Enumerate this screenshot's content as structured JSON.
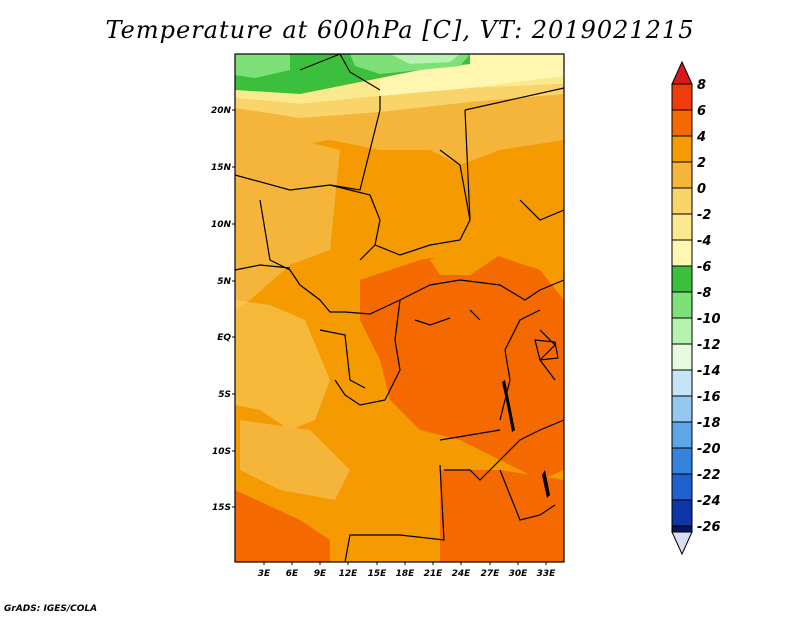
{
  "title": "Temperature at 600hPa [C], VT: 2019021215",
  "footer": "GrADS: IGES/COLA",
  "map": {
    "lat_labels": [
      "20N",
      "15N",
      "10N",
      "5N",
      "EQ",
      "5S",
      "10S",
      "15S"
    ],
    "lon_labels": [
      "3E",
      "6E",
      "9E",
      "12E",
      "15E",
      "18E",
      "21E",
      "24E",
      "27E",
      "30E",
      "33E"
    ]
  },
  "colorbar": {
    "labels": [
      "8",
      "6",
      "4",
      "2",
      "0",
      "-2",
      "-4",
      "-6",
      "-8",
      "-10",
      "-12",
      "-14",
      "-16",
      "-18",
      "-20",
      "-22",
      "-24",
      "-26"
    ],
    "colors": {
      "gt8": "#d7191c",
      "6_8": "#f03b0a",
      "4_6": "#f56a00",
      "2_4": "#f59a00",
      "0_2": "#f5b43a",
      "m2_0": "#f8d46a",
      "m4_m2": "#fbe98e",
      "m6_m4": "#fff7b0",
      "m8_m6": "#3cbf3c",
      "m10_m8": "#7fe07a",
      "m12_m10": "#b6f3b0",
      "m14_m12": "#e6fae0",
      "m16_m14": "#c7e3f7",
      "m18_m16": "#94c8f0",
      "m20_m18": "#5ea6e6",
      "m22_m20": "#3683dd",
      "m24_m22": "#1f5fcf",
      "m26_m24": "#0f35a8",
      "lt26": "#07145e",
      "low_tip": "#d9def5"
    }
  }
}
